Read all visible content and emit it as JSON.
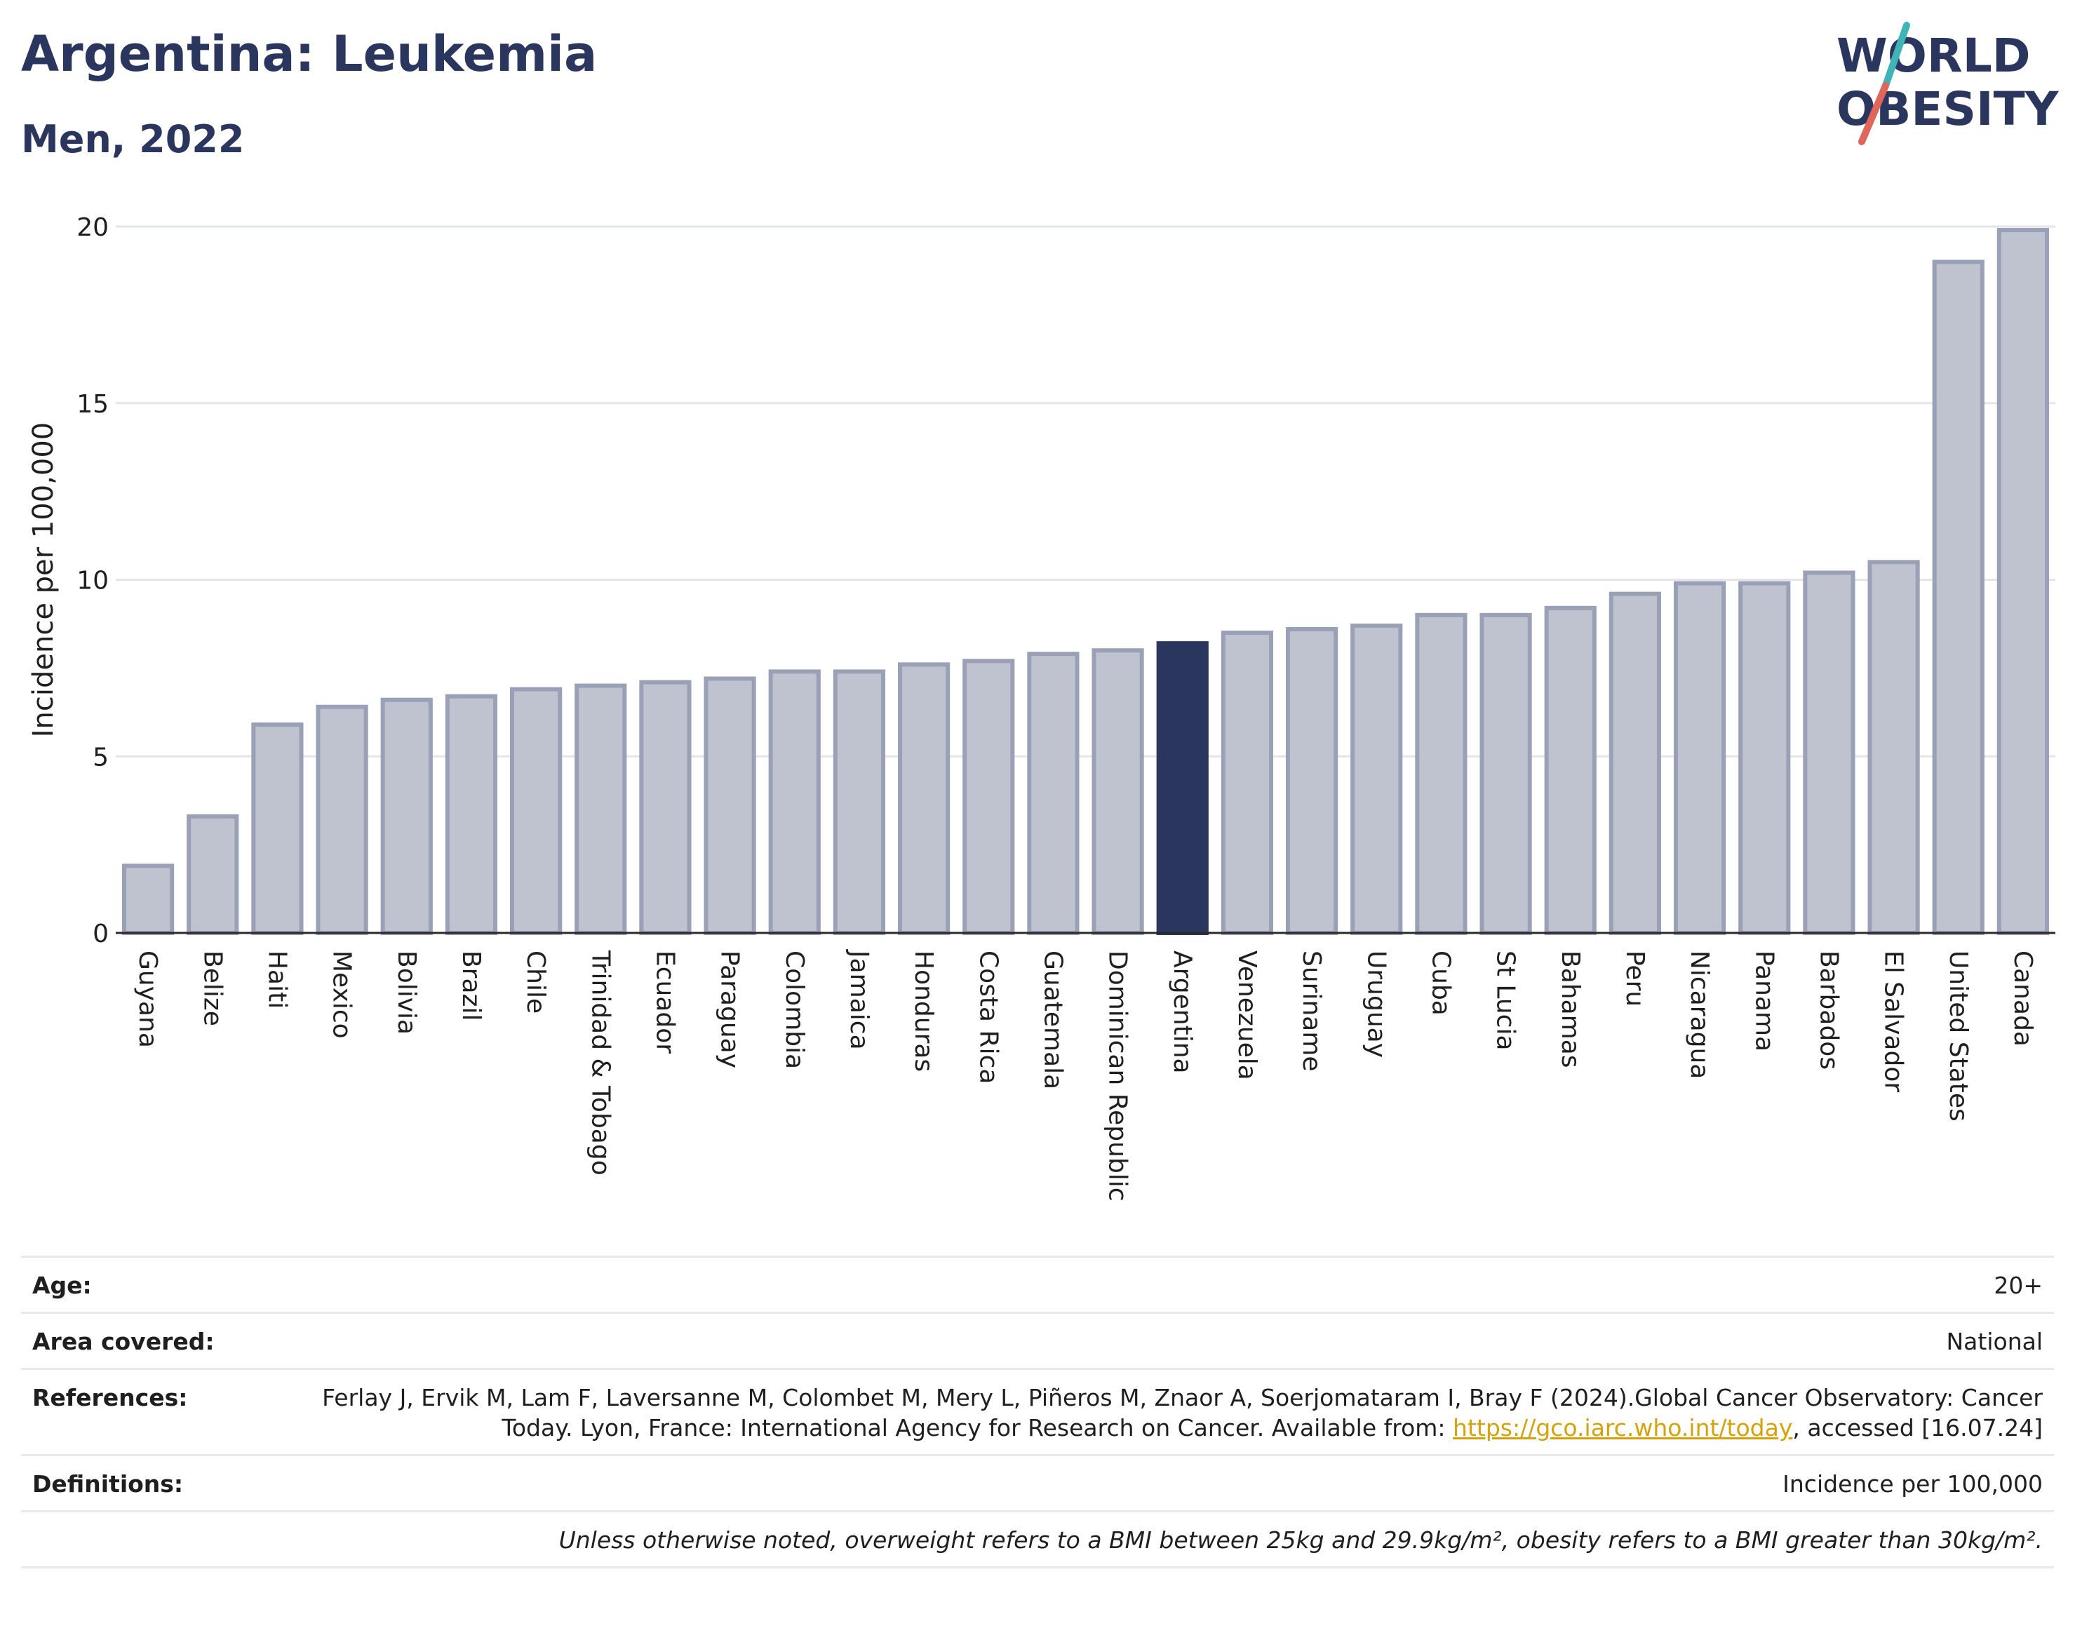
{
  "header": {
    "title": "Argentina: Leukemia",
    "subtitle": "Men, 2022"
  },
  "logo": {
    "line1": "WORLD",
    "line2": "OBESITY",
    "slash_color_top": "#3fb3b5",
    "slash_color_bottom": "#e0655a"
  },
  "chart_data": {
    "type": "bar",
    "ylabel": "Incidence per 100,000",
    "ylim": [
      0,
      20
    ],
    "yticks": [
      "0",
      "5",
      "10",
      "15",
      "20"
    ],
    "grid": true,
    "highlight": "Argentina",
    "colors": {
      "bar": "#bfc3d0",
      "bar_edge": "#9aa0b6",
      "highlight": "#2b365f",
      "grid": "#e3e5ea"
    },
    "categories": [
      "Guyana",
      "Belize",
      "Haiti",
      "Mexico",
      "Bolivia",
      "Brazil",
      "Chile",
      "Trinidad & Tobago",
      "Ecuador",
      "Paraguay",
      "Colombia",
      "Jamaica",
      "Honduras",
      "Costa Rica",
      "Guatemala",
      "Dominican Republic",
      "Argentina",
      "Venezuela",
      "Suriname",
      "Uruguay",
      "Cuba",
      "St Lucia",
      "Bahamas",
      "Peru",
      "Nicaragua",
      "Panama",
      "Barbados",
      "El Salvador",
      "United States",
      "Canada"
    ],
    "values": [
      1.9,
      3.3,
      5.9,
      6.4,
      6.6,
      6.7,
      6.9,
      7.0,
      7.1,
      7.2,
      7.4,
      7.4,
      7.6,
      7.7,
      7.9,
      8.0,
      8.2,
      8.5,
      8.6,
      8.7,
      9.0,
      9.0,
      9.2,
      9.6,
      9.9,
      9.9,
      10.2,
      10.5,
      19.0,
      19.9
    ]
  },
  "info": {
    "age_label": "Age:",
    "age_value": "20+",
    "area_label": "Area covered:",
    "area_value": "National",
    "references_label": "References:",
    "references_text_1": "Ferlay J, Ervik M, Lam F, Laversanne M, Colombet M, Mery L, Piñeros M, Znaor A, Soerjomataram I, Bray F (2024).Global Cancer Observatory: Cancer Today. Lyon, France: International Agency for Research on Cancer. Available from: ",
    "references_link": "https://gco.iarc.who.int/today",
    "references_text_2": ", accessed [16.07.24]",
    "definitions_label": "Definitions:",
    "definitions_value": "Incidence per 100,000",
    "note": "Unless otherwise noted, overweight refers to a BMI between 25kg and 29.9kg/m², obesity refers to a BMI greater than 30kg/m²."
  }
}
